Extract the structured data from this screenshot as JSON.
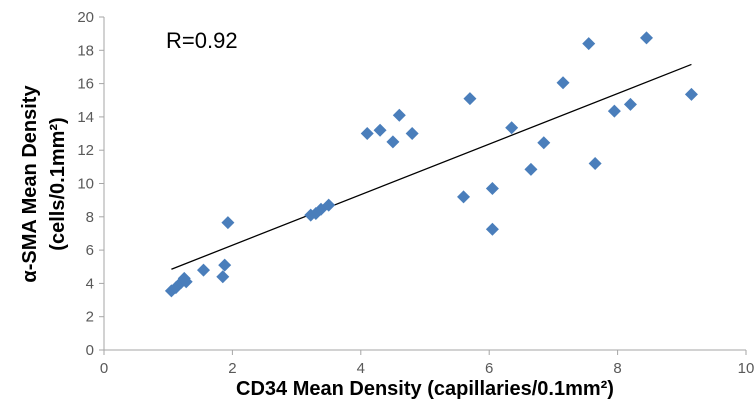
{
  "chart_data": {
    "type": "scatter",
    "title": "",
    "annotation": "R=0.92",
    "xlabel": "CD34 Mean Density (capillaries/0.1mm²)",
    "ylabel_line1": "α-SMA  Mean Density",
    "ylabel_line2": "(cells/0.1mm²)",
    "xlim": [
      0,
      10
    ],
    "ylim": [
      0,
      20
    ],
    "x_ticks": [
      0,
      2,
      4,
      6,
      8,
      10
    ],
    "y_ticks": [
      0,
      2,
      4,
      6,
      8,
      10,
      12,
      14,
      16,
      18,
      20
    ],
    "grid": false,
    "legend": "none",
    "marker": "diamond",
    "marker_color": "#4a7ebb",
    "trendline_color": "#000000",
    "trendline": {
      "x": [
        1.05,
        9.15
      ],
      "y": [
        4.85,
        17.15
      ]
    },
    "points": [
      {
        "x": 1.05,
        "y": 3.55
      },
      {
        "x": 1.12,
        "y": 3.75
      },
      {
        "x": 1.2,
        "y": 4.05
      },
      {
        "x": 1.25,
        "y": 4.3
      },
      {
        "x": 1.28,
        "y": 4.1
      },
      {
        "x": 1.55,
        "y": 4.8
      },
      {
        "x": 1.85,
        "y": 4.4
      },
      {
        "x": 1.88,
        "y": 5.1
      },
      {
        "x": 1.93,
        "y": 7.65
      },
      {
        "x": 3.22,
        "y": 8.1
      },
      {
        "x": 3.3,
        "y": 8.2
      },
      {
        "x": 3.38,
        "y": 8.45
      },
      {
        "x": 3.5,
        "y": 8.7
      },
      {
        "x": 4.1,
        "y": 13.0
      },
      {
        "x": 4.3,
        "y": 13.2
      },
      {
        "x": 4.5,
        "y": 12.5
      },
      {
        "x": 4.6,
        "y": 14.1
      },
      {
        "x": 4.8,
        "y": 13.0
      },
      {
        "x": 5.6,
        "y": 9.2
      },
      {
        "x": 5.7,
        "y": 15.1
      },
      {
        "x": 6.05,
        "y": 9.7
      },
      {
        "x": 6.05,
        "y": 7.25
      },
      {
        "x": 6.35,
        "y": 13.35
      },
      {
        "x": 6.65,
        "y": 10.85
      },
      {
        "x": 6.85,
        "y": 12.45
      },
      {
        "x": 7.15,
        "y": 16.05
      },
      {
        "x": 7.55,
        "y": 18.4
      },
      {
        "x": 7.65,
        "y": 11.2
      },
      {
        "x": 7.95,
        "y": 14.35
      },
      {
        "x": 8.2,
        "y": 14.75
      },
      {
        "x": 8.45,
        "y": 18.75
      },
      {
        "x": 9.15,
        "y": 15.35
      }
    ]
  }
}
